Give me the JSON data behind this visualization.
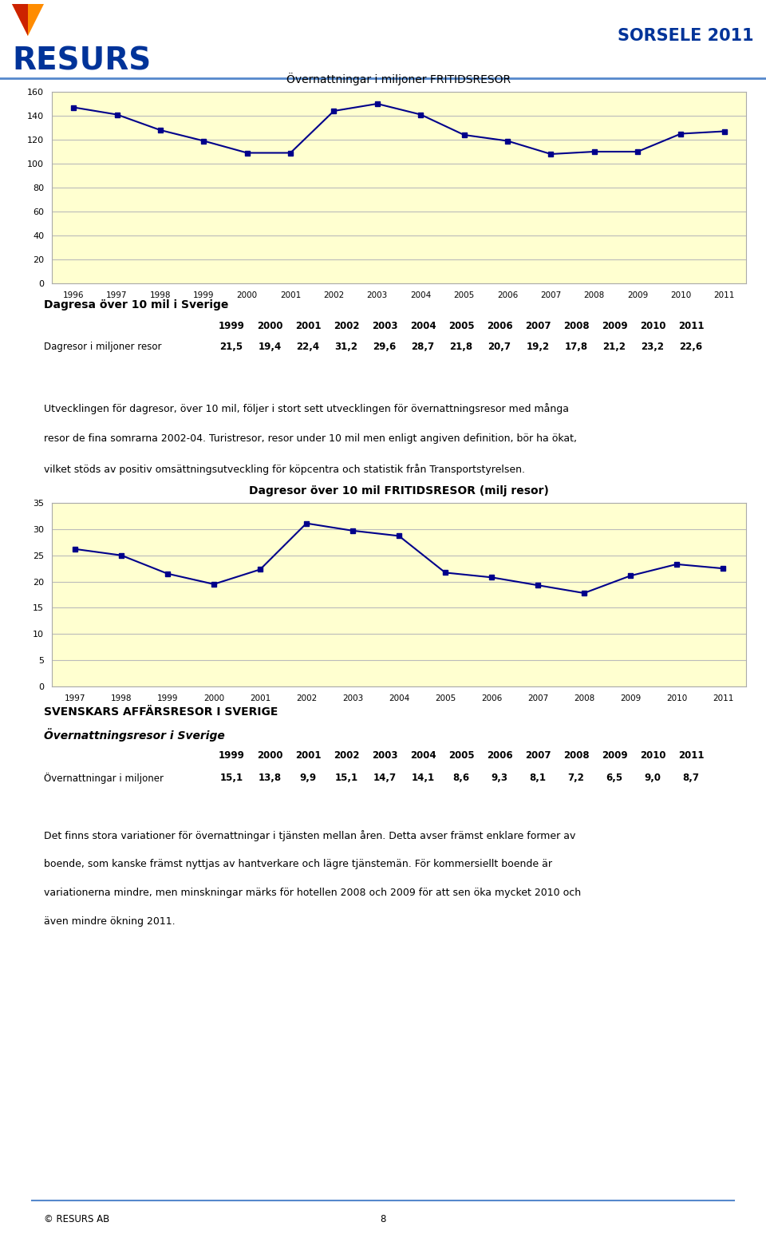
{
  "page_bg": "#ffffff",
  "chart_bg": "#ffffd0",
  "line_color": "#00008B",
  "marker_color": "#00008B",
  "title_color": "#000000",
  "text_color": "#000000",
  "header_blue": "#003399",
  "chart1_title": "Övernattningar i miljoner FRITIDSRESOR",
  "chart1_years": [
    1996,
    1997,
    1998,
    1999,
    2000,
    2001,
    2002,
    2003,
    2004,
    2005,
    2006,
    2007,
    2008,
    2009,
    2010,
    2011
  ],
  "chart1_values": [
    147,
    141,
    128,
    119,
    109,
    109,
    144,
    150,
    141,
    124,
    119,
    108,
    110,
    110,
    125,
    127
  ],
  "chart1_ylim": [
    0,
    160
  ],
  "chart1_yticks": [
    0,
    20,
    40,
    60,
    80,
    100,
    120,
    140,
    160
  ],
  "section1_title": "Dagresa över 10 mil i Sverige",
  "table1_years_list": [
    "1999",
    "2000",
    "2001",
    "2002",
    "2003",
    "2004",
    "2005",
    "2006",
    "2007",
    "2008",
    "2009",
    "2010",
    "2011"
  ],
  "table1_label": "Dagresor i miljoner resor",
  "table1_values_list": [
    "21,5",
    "19,4",
    "22,4",
    "31,2",
    "29,6",
    "28,7",
    "21,8",
    "20,7",
    "19,2",
    "17,8",
    "21,2",
    "23,2",
    "22,6"
  ],
  "para1_lines": [
    "Utvecklingen för dagresor, över 10 mil, följer i stort sett utvecklingen för övernattningsresor med många",
    "resor de fina somrarna 2002-04. Turistresor, resor under 10 mil men enligt angiven definition, bör ha ökat,",
    "vilket stöds av positiv omsättningsutveckling för köpcentra och statistik från Transportstyrelsen."
  ],
  "chart2_title": "Dagresor över 10 mil FRITIDSRESOR (milj resor)",
  "chart2_years": [
    1997,
    1998,
    1999,
    2000,
    2001,
    2002,
    2003,
    2004,
    2005,
    2006,
    2007,
    2008,
    2009,
    2010,
    2011
  ],
  "chart2_values": [
    26.2,
    25.0,
    21.5,
    19.5,
    22.3,
    31.1,
    29.7,
    28.7,
    21.7,
    20.8,
    19.3,
    17.8,
    21.1,
    23.3,
    22.5
  ],
  "chart2_ylim": [
    0,
    35
  ],
  "chart2_yticks": [
    0,
    5,
    10,
    15,
    20,
    25,
    30,
    35
  ],
  "section2_title": "SVENSKARS AFFÄRSRESOR I SVERIGE",
  "section2_subtitle": "Övernattningsresor i Sverige",
  "table2_years_list": [
    "1999",
    "2000",
    "2001",
    "2002",
    "2003",
    "2004",
    "2005",
    "2006",
    "2007",
    "2008",
    "2009",
    "2010",
    "2011"
  ],
  "table2_label": "Övernattningar i miljoner",
  "table2_values_list": [
    "15,1",
    "13,8",
    "9,9",
    "15,1",
    "14,7",
    "14,1",
    "8,6",
    "9,3",
    "8,1",
    "7,2",
    "6,5",
    "9,0",
    "8,7"
  ],
  "para2_lines": [
    "Det finns stora variationer för övernattningar i tjänsten mellan åren. Detta avser främst enklare former av",
    "boende, som kanske främst nyttjas av hantverkare och lägre tjänstemän. För kommersiellt boende är",
    "variationerna mindre, men minskningar märks för hotellen 2008 och 2009 för att sen öka mycket 2010 och",
    "även mindre ökning 2011."
  ],
  "footer_left": "© RESURS AB",
  "footer_center": "8"
}
